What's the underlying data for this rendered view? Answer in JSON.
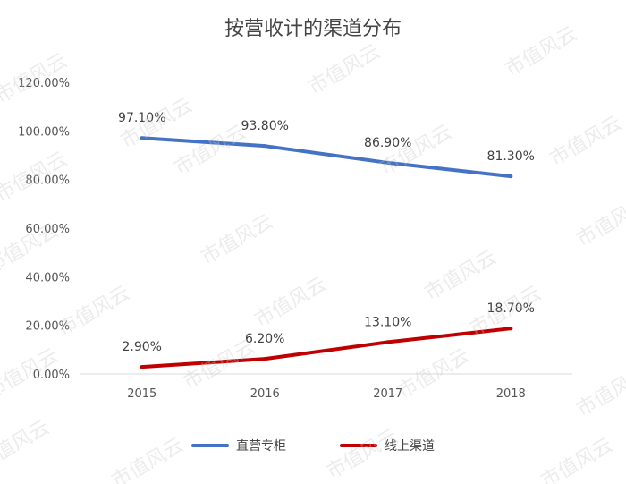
{
  "chart_data": {
    "type": "line",
    "title": "按营收计的渠道分布",
    "categories": [
      "2015",
      "2016",
      "2017",
      "2018"
    ],
    "y_ticks": [
      "0.00%",
      "20.00%",
      "40.00%",
      "60.00%",
      "80.00%",
      "100.00%",
      "120.00%"
    ],
    "ylim": [
      0,
      120
    ],
    "grid": false,
    "legend_position": "bottom",
    "series": [
      {
        "name": "直营专柜",
        "color": "#4472c4",
        "values": [
          97.1,
          93.8,
          86.9,
          81.3
        ],
        "labels": [
          "97.10%",
          "93.80%",
          "86.90%",
          "81.30%"
        ]
      },
      {
        "name": "线上渠道",
        "color": "#c00000",
        "values": [
          2.9,
          6.2,
          13.1,
          18.7
        ],
        "labels": [
          "2.90%",
          "6.20%",
          "13.10%",
          "18.70%"
        ]
      }
    ]
  },
  "watermark": "市值风云"
}
